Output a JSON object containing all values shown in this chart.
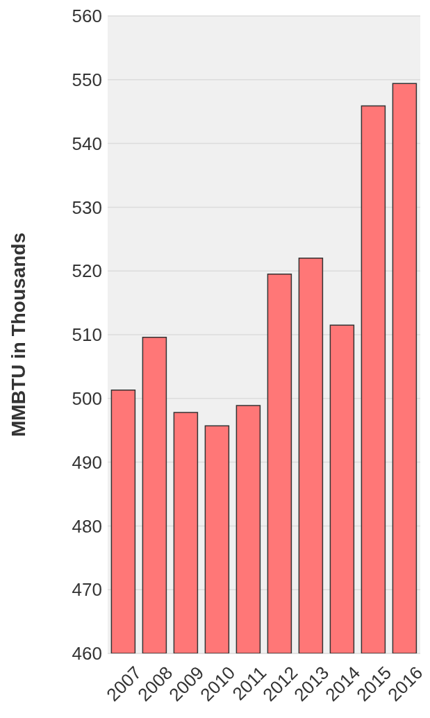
{
  "chart_data": {
    "type": "bar",
    "ylabel": "MMBTU in Thousands",
    "categories": [
      "2007",
      "2008",
      "2009",
      "2010",
      "2011",
      "2012",
      "2013",
      "2014",
      "2015",
      "2016"
    ],
    "values": [
      501.3,
      509.6,
      497.8,
      495.7,
      498.9,
      519.5,
      522.0,
      511.5,
      545.9,
      549.4
    ],
    "color": "#ff7777",
    "ylim": [
      460,
      560
    ],
    "yticks": [
      460,
      470,
      480,
      490,
      500,
      510,
      520,
      530,
      540,
      550,
      560
    ],
    "grid": "y"
  }
}
